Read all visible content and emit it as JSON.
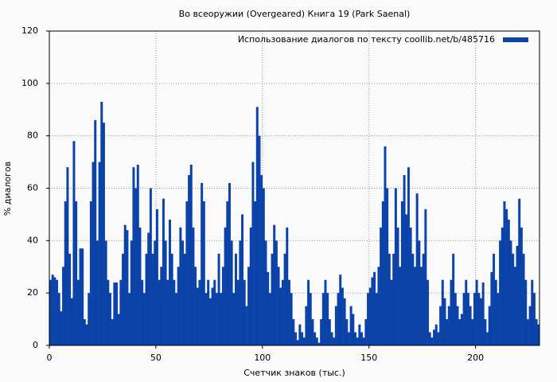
{
  "chart_data": {
    "type": "bar",
    "title": "Во всеоружии (Overgeared) Книга 19 (Park Saenal)",
    "x_label": "Счетчик знаков (тыс.)",
    "y_label": "% диалогов",
    "x": [
      0,
      1,
      2,
      3,
      4,
      5,
      6,
      7,
      8,
      9,
      10,
      11,
      12,
      13,
      14,
      15,
      16,
      17,
      18,
      19,
      20,
      21,
      22,
      23,
      24,
      25,
      26,
      27,
      28,
      29,
      30,
      31,
      32,
      33,
      34,
      35,
      36,
      37,
      38,
      39,
      40,
      41,
      42,
      43,
      44,
      45,
      46,
      47,
      48,
      49,
      50,
      51,
      52,
      53,
      54,
      55,
      56,
      57,
      58,
      59,
      60,
      61,
      62,
      63,
      64,
      65,
      66,
      67,
      68,
      69,
      70,
      71,
      72,
      73,
      74,
      75,
      76,
      77,
      78,
      79,
      80,
      81,
      82,
      83,
      84,
      85,
      86,
      87,
      88,
      89,
      90,
      91,
      92,
      93,
      94,
      95,
      96,
      97,
      98,
      99,
      100,
      101,
      102,
      103,
      104,
      105,
      106,
      107,
      108,
      109,
      110,
      111,
      112,
      113,
      114,
      115,
      116,
      117,
      118,
      119,
      120,
      121,
      122,
      123,
      124,
      125,
      126,
      127,
      128,
      129,
      130,
      131,
      132,
      133,
      134,
      135,
      136,
      137,
      138,
      139,
      140,
      141,
      142,
      143,
      144,
      145,
      146,
      147,
      148,
      149,
      150,
      151,
      152,
      153,
      154,
      155,
      156,
      157,
      158,
      159,
      160,
      161,
      162,
      163,
      164,
      165,
      166,
      167,
      168,
      169,
      170,
      171,
      172,
      173,
      174,
      175,
      176,
      177,
      178,
      179,
      180,
      181,
      182,
      183,
      184,
      185,
      186,
      187,
      188,
      189,
      190,
      191,
      192,
      193,
      194,
      195,
      196,
      197,
      198,
      199,
      200,
      201,
      202,
      203,
      204,
      205,
      206,
      207,
      208,
      209,
      210,
      211,
      212,
      213,
      214,
      215,
      216,
      217,
      218,
      219,
      220,
      221,
      222,
      223,
      224,
      225,
      226,
      227,
      228,
      229
    ],
    "series": [
      {
        "name": "Использование диалогов по тексту  coollib.net/b/485716",
        "color": "#0b43a8",
        "values": [
          25,
          27,
          26,
          25,
          20,
          13,
          30,
          55,
          68,
          35,
          18,
          78,
          55,
          25,
          37,
          37,
          10,
          8,
          20,
          55,
          70,
          86,
          40,
          70,
          93,
          85,
          40,
          25,
          20,
          10,
          24,
          24,
          12,
          25,
          35,
          46,
          44,
          20,
          40,
          68,
          60,
          69,
          45,
          25,
          20,
          35,
          43,
          60,
          35,
          40,
          52,
          25,
          30,
          56,
          40,
          25,
          48,
          35,
          25,
          20,
          30,
          45,
          40,
          35,
          55,
          65,
          69,
          45,
          30,
          22,
          25,
          62,
          55,
          20,
          25,
          18,
          22,
          25,
          20,
          35,
          20,
          30,
          45,
          55,
          62,
          40,
          20,
          35,
          25,
          40,
          50,
          25,
          15,
          30,
          45,
          70,
          55,
          91,
          80,
          65,
          60,
          40,
          28,
          20,
          35,
          46,
          40,
          30,
          22,
          25,
          35,
          45,
          25,
          20,
          10,
          5,
          2,
          8,
          5,
          3,
          15,
          25,
          20,
          10,
          5,
          3,
          1,
          10,
          20,
          25,
          20,
          10,
          5,
          3,
          15,
          20,
          27,
          22,
          18,
          10,
          5,
          15,
          12,
          5,
          3,
          8,
          5,
          3,
          10,
          20,
          22,
          26,
          28,
          20,
          30,
          45,
          55,
          76,
          60,
          35,
          25,
          35,
          60,
          45,
          30,
          55,
          65,
          50,
          68,
          45,
          35,
          30,
          58,
          40,
          30,
          35,
          52,
          25,
          5,
          3,
          6,
          8,
          5,
          15,
          25,
          18,
          10,
          15,
          25,
          35,
          20,
          15,
          10,
          12,
          20,
          25,
          20,
          15,
          10,
          20,
          25,
          20,
          18,
          24,
          10,
          5,
          15,
          28,
          35,
          25,
          20,
          40,
          45,
          55,
          52,
          48,
          40,
          35,
          30,
          38,
          56,
          45,
          35,
          25,
          10,
          15,
          25,
          20,
          10,
          8
        ]
      }
    ],
    "xlim": [
      0,
      230
    ],
    "ylim": [
      0,
      120
    ],
    "xticks": [
      0,
      50,
      100,
      150,
      200
    ],
    "yticks": [
      0,
      20,
      40,
      60,
      80,
      100,
      120
    ],
    "grid": true,
    "legend": "upper right"
  }
}
